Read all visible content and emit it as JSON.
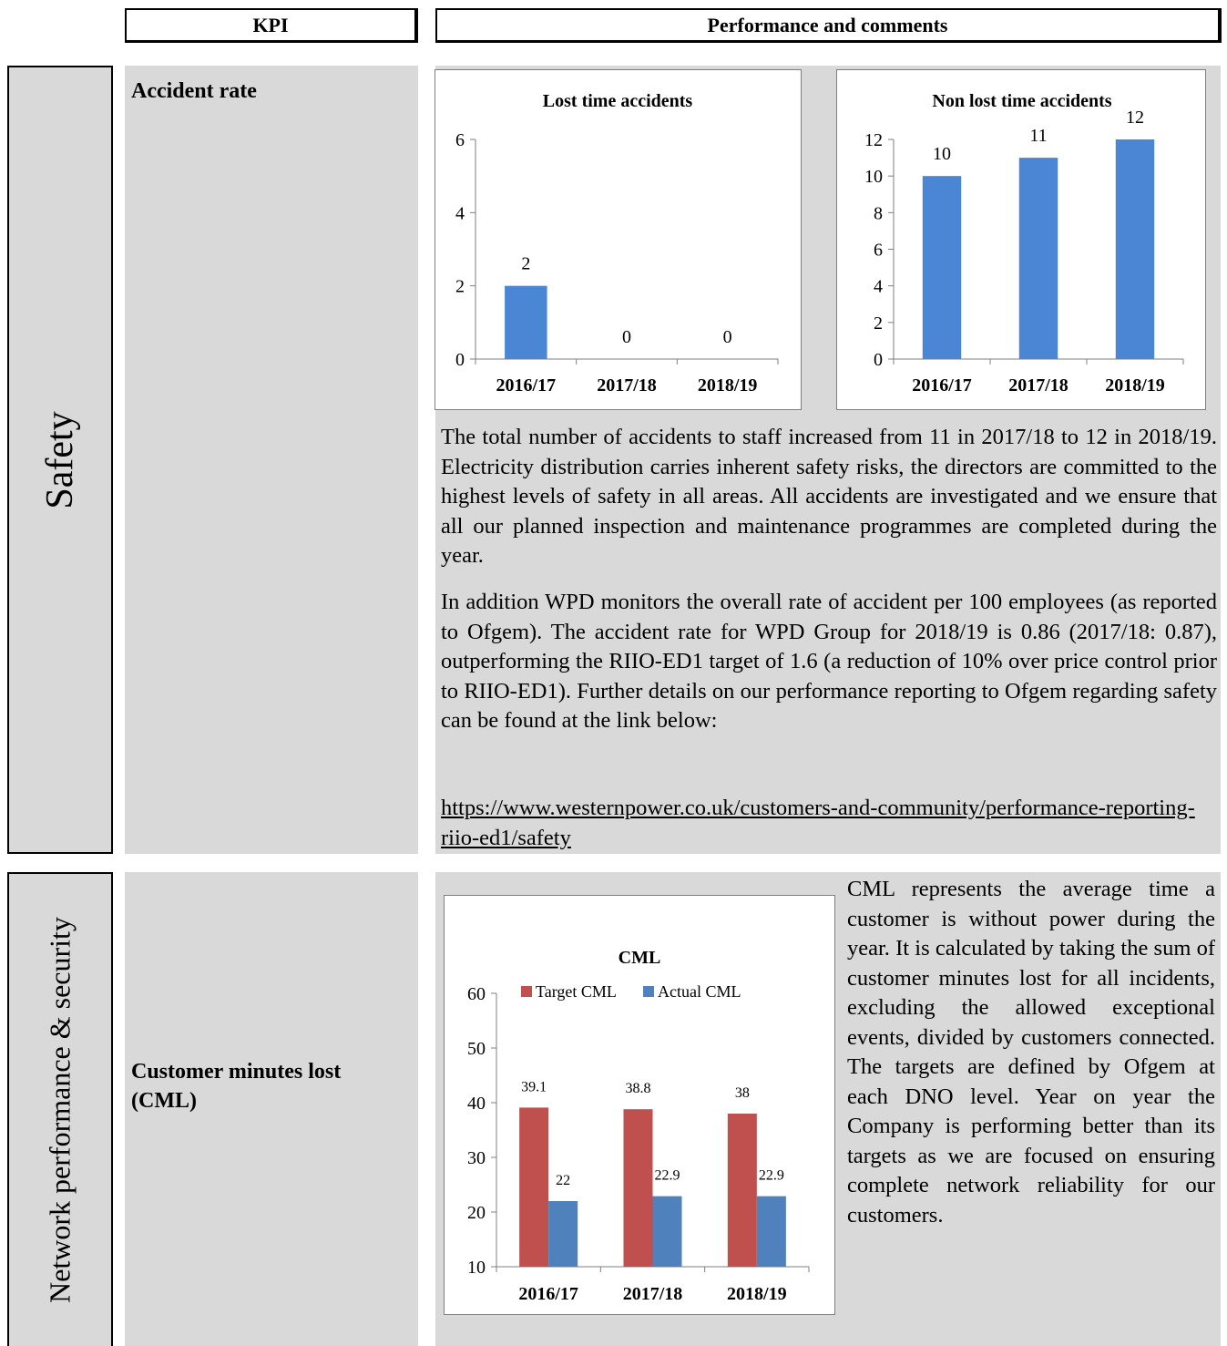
{
  "header": {
    "kpi_label": "KPI",
    "performance_label": "Performance and comments"
  },
  "sections": {
    "safety": {
      "category": "Safety",
      "kpi": "Accident rate",
      "paragraph1": "The total number of accidents to staff  increased from 11 in 2017/18 to 12 in 2018/19. Electricity distribution carries inherent safety risks, the directors are committed to the highest levels of safety in all areas.  All accidents are investigated and we ensure that all our planned inspection and maintenance programmes are completed during the year.",
      "paragraph2": "In addition WPD monitors the overall rate of accident per 100 employees (as reported to Ofgem). The accident rate for WPD Group for 2018/19 is 0.86 (2017/18: 0.87), outperforming the RIIO-ED1 target of 1.6 (a reduction of 10% over price control prior to RIIO-ED1). Further details on our performance reporting to Ofgem regarding safety can be found at the link below:",
      "link": "https://www.westernpower.co.uk/customers-and-community/performance-reporting-riio-ed1/safety"
    },
    "network": {
      "category": "Network performance  & security",
      "kpi": "Customer minutes lost (CML)",
      "paragraph": "CML represents the average time a customer is without power during the year. It is calculated by  taking the sum of customer minutes lost for all incidents, excluding the allowed exceptional events, divided by customers connected. The targets are defined by Ofgem at each DNO level.  Year on year the Company is performing better than its targets as we are focused on ensuring complete network reliability for our customers."
    }
  },
  "colors": {
    "bar_blue": "#4a86d4",
    "bar_red": "#c0504d",
    "bar_steel": "#4f81bd",
    "panel_grey": "#d9d9d9"
  },
  "chart_data": [
    {
      "type": "bar",
      "title": "Lost time accidents",
      "categories": [
        "2016/17",
        "2017/18",
        "2018/19"
      ],
      "values": [
        2,
        0,
        0
      ],
      "ylim": [
        0,
        6
      ],
      "yticks": [
        0,
        2,
        4,
        6
      ],
      "grid": false,
      "data_labels": true
    },
    {
      "type": "bar",
      "title": "Non lost time accidents",
      "categories": [
        "2016/17",
        "2017/18",
        "2018/19"
      ],
      "values": [
        10,
        11,
        12
      ],
      "ylim": [
        0,
        12
      ],
      "yticks": [
        0,
        2,
        4,
        6,
        8,
        10,
        12
      ],
      "grid": false,
      "data_labels": true
    },
    {
      "type": "bar",
      "title": "CML",
      "categories": [
        "2016/17",
        "2017/18",
        "2018/19"
      ],
      "series": [
        {
          "name": "Target CML",
          "values": [
            39.1,
            38.8,
            38
          ],
          "color": "#c0504d"
        },
        {
          "name": "Actual CML",
          "values": [
            22,
            22.9,
            22.9
          ],
          "color": "#4f81bd"
        }
      ],
      "ylim": [
        10,
        60
      ],
      "yticks": [
        10,
        20,
        30,
        40,
        50,
        60
      ],
      "legend": "top",
      "grid": false,
      "data_labels": true
    }
  ]
}
